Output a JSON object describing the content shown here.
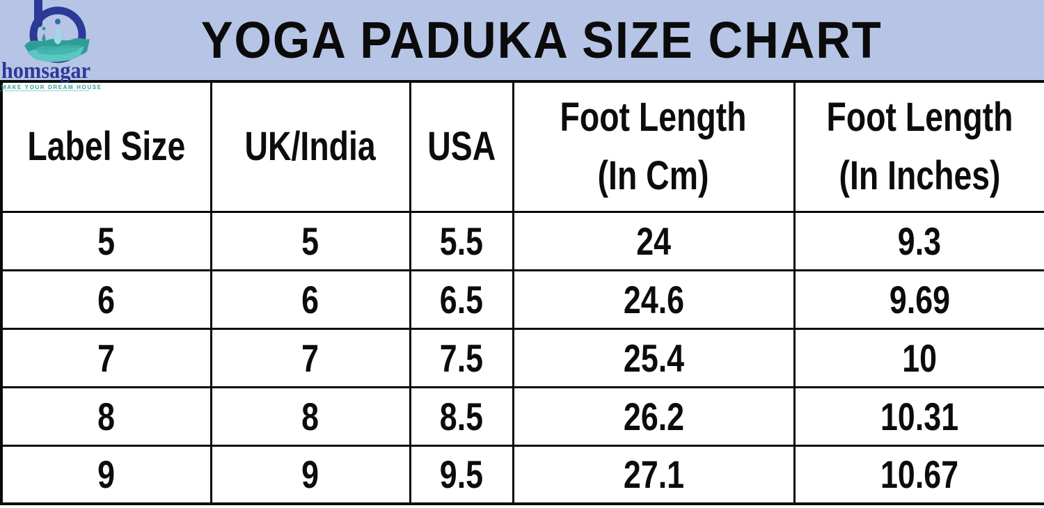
{
  "header": {
    "title": "YOGA PADUKA SIZE CHART",
    "logo": {
      "brand": "homsagar",
      "tagline": "MAKE YOUR DREAM HOUSE"
    }
  },
  "colors": {
    "band_background": "#b6c4e6",
    "table_border": "#0a0a0a",
    "text": "#0c0c0c",
    "logo_indigo": "#2b3a96",
    "logo_teal_dark": "#2f9d94",
    "logo_teal_light": "#5cc6c0",
    "logo_drop_blue": "#9fd9e8"
  },
  "chart_data": {
    "type": "table",
    "title": "YOGA PADUKA SIZE CHART",
    "columns": [
      "Label Size",
      "UK/India",
      "USA",
      "Foot Length (In Cm)",
      "Foot Length (In Inches)"
    ],
    "column_display_lines": [
      [
        "Label Size"
      ],
      [
        "UK/India"
      ],
      [
        "USA"
      ],
      [
        "Foot Length",
        "(In Cm)"
      ],
      [
        "Foot Length",
        "(In Inches)"
      ]
    ],
    "rows": [
      [
        5,
        5,
        5.5,
        24,
        9.3
      ],
      [
        6,
        6,
        6.5,
        24.6,
        9.69
      ],
      [
        7,
        7,
        7.5,
        25.4,
        10
      ],
      [
        8,
        8,
        8.5,
        26.2,
        10.31
      ],
      [
        9,
        9,
        9.5,
        27.1,
        10.67
      ]
    ]
  }
}
